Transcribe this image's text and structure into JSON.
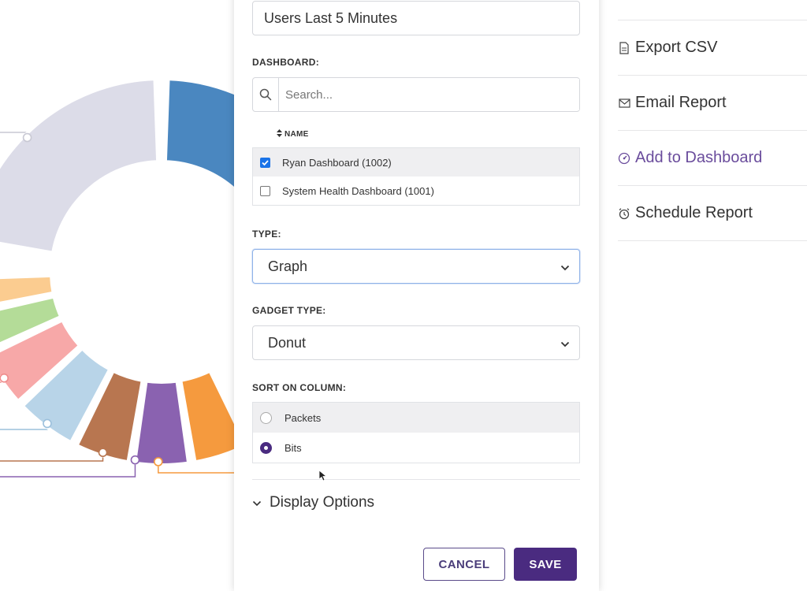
{
  "form": {
    "gadget_name": "Users Last 5 Minutes",
    "dashboard_label": "DASHBOARD:",
    "search_placeholder": "Search...",
    "name_column_header": "NAME",
    "dashboards": [
      {
        "label": "Ryan Dashboard (1002)",
        "checked": true
      },
      {
        "label": "System Health Dashboard (1001)",
        "checked": false
      }
    ],
    "type_label": "TYPE:",
    "type_value": "Graph",
    "gadget_type_label": "GADGET TYPE:",
    "gadget_type_value": "Donut",
    "sort_label": "SORT ON COLUMN:",
    "sort_options": [
      {
        "label": "Packets",
        "selected": false
      },
      {
        "label": "Bits",
        "selected": true
      }
    ],
    "display_options_label": "Display Options",
    "cancel_label": "CANCEL",
    "save_label": "SAVE"
  },
  "menu": {
    "items": [
      {
        "label": "Export CSV",
        "icon": "csv-file-icon",
        "accent": false
      },
      {
        "label": "Email Report",
        "icon": "envelope-icon",
        "accent": false
      },
      {
        "label": "Add to Dashboard",
        "icon": "dashboard-gauge-icon",
        "accent": true
      },
      {
        "label": "Schedule Report",
        "icon": "alarm-clock-icon",
        "accent": false
      }
    ]
  },
  "colors": {
    "primary": "#4a2b80",
    "accent_text": "#6a4c9c",
    "checkbox": "#1a73e8"
  },
  "chart_data": {
    "type": "pie",
    "style": "donut",
    "segments": [
      {
        "color": "#dcdce8"
      },
      {
        "color": "#4a87c0"
      },
      {
        "color": "#5aa848"
      },
      {
        "color": "#f59a3e"
      },
      {
        "color": "#8a62b0"
      },
      {
        "color": "#b87650"
      },
      {
        "color": "#b8d4e8"
      },
      {
        "color": "#f7a8a8"
      },
      {
        "color": "#b4dc98"
      },
      {
        "color": "#fbcc90"
      }
    ]
  }
}
